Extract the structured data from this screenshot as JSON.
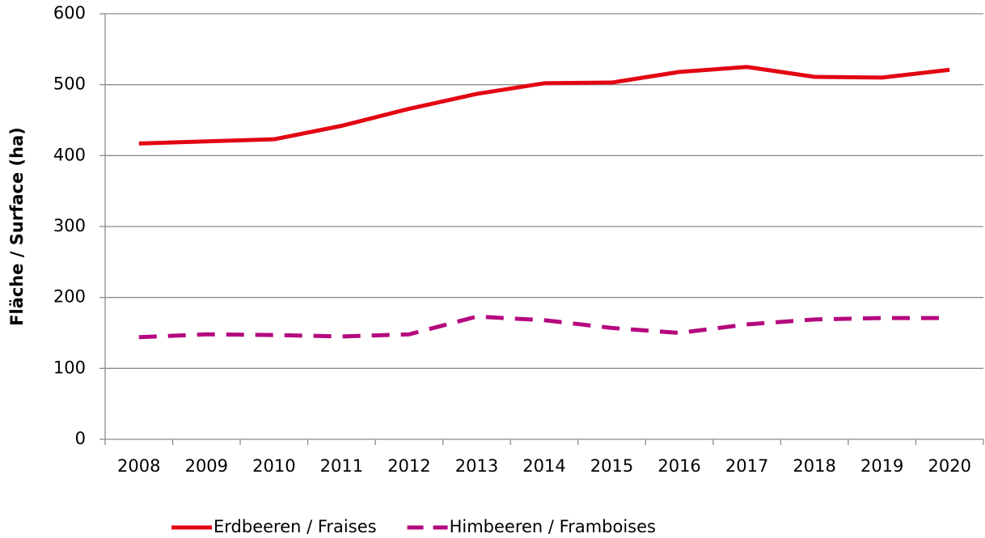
{
  "chart_data": {
    "type": "line",
    "y_label": "Fläche / Surface (ha)",
    "categories": [
      "2008",
      "2009",
      "2010",
      "2011",
      "2012",
      "2013",
      "2014",
      "2015",
      "2016",
      "2017",
      "2018",
      "2019",
      "2020"
    ],
    "series": [
      {
        "name": "Erdbeeren / Fraises",
        "color": "#e30613",
        "dash": false,
        "values": [
          417,
          420,
          423,
          442,
          466,
          487,
          502,
          503,
          518,
          525,
          511,
          510,
          521
        ]
      },
      {
        "name": "Himbeeren / Framboises",
        "color": "#b5087e",
        "dash": true,
        "values": [
          144,
          148,
          147,
          145,
          148,
          173,
          168,
          157,
          150,
          162,
          169,
          171,
          171
        ]
      }
    ],
    "ylim": [
      0,
      600
    ],
    "yticks": [
      0,
      100,
      200,
      300,
      400,
      500,
      600
    ],
    "grid": true,
    "legend": "bottom"
  }
}
